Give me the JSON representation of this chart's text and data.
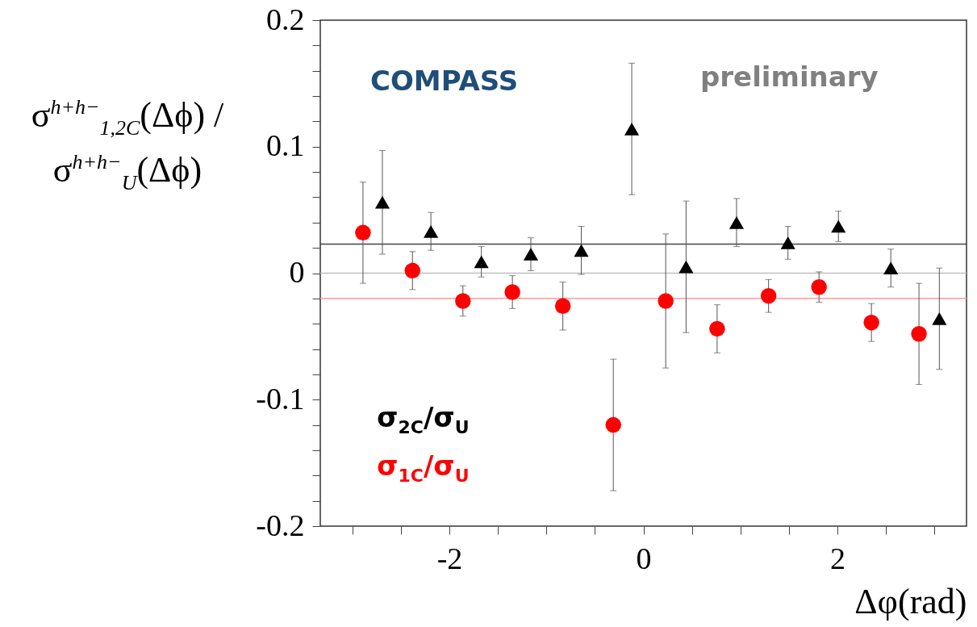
{
  "chart_data": {
    "type": "scatter",
    "ylabel": "σ$^{h+h−}$$_{1,2C}$(Δϕ) / σ$^{h+h−}$$_{U}$(Δϕ)",
    "xlabel": "Δφ(rad)",
    "annotations": [
      "COMPASS",
      "preliminary"
    ],
    "legend": "bottom left",
    "grid": false,
    "xlim": [
      -3.33,
      3.33
    ],
    "xticks": [
      {
        "value": -3,
        "label": null
      },
      {
        "value": -2.5,
        "label": null
      },
      -2,
      {
        "value": -1.5,
        "label": null
      },
      {
        "value": -1,
        "label": null
      },
      {
        "value": -0.5,
        "label": null
      },
      0,
      {
        "value": 0.5,
        "label": null
      },
      {
        "value": 1,
        "label": null
      },
      {
        "value": 1.5,
        "label": null
      },
      2,
      {
        "value": 2.5,
        "label": null
      },
      {
        "value": 3,
        "label": null
      }
    ],
    "ylim": [
      -0.2,
      0.2
    ],
    "yticks": [
      -0.2,
      {
        "value": -0.18,
        "label": null
      },
      {
        "value": -0.16,
        "label": null
      },
      {
        "value": -0.14,
        "label": null
      },
      {
        "value": -0.12,
        "label": null
      },
      -0.1,
      {
        "value": -0.08,
        "label": null
      },
      {
        "value": -0.06,
        "label": null
      },
      {
        "value": -0.04,
        "label": null
      },
      {
        "value": -0.02,
        "label": null
      },
      0,
      {
        "value": 0.02,
        "label": null
      },
      {
        "value": 0.04,
        "label": null
      },
      {
        "value": 0.06,
        "label": null
      },
      {
        "value": 0.08,
        "label": null
      },
      0.1,
      {
        "value": 0.12,
        "label": null
      },
      {
        "value": 0.14,
        "label": null
      },
      {
        "value": 0.16,
        "label": null
      },
      {
        "value": 0.18,
        "label": null
      },
      0.2
    ],
    "ref_lines": [
      {
        "axis": "y",
        "value": 0,
        "color": "#c0c0c0"
      },
      {
        "axis": "y",
        "value": 0.023,
        "color": "#444444"
      },
      {
        "axis": "y",
        "value": -0.02,
        "color": "#ff9a9a"
      }
    ],
    "series": [
      {
        "name": "σ$_{2C}$/σ$_{U}$",
        "color": "#000000",
        "marker": "triangle",
        "x": [
          -2.69,
          -2.19,
          -1.67,
          -1.16,
          -0.64,
          -0.12,
          0.44,
          0.96,
          1.49,
          2.01,
          2.55,
          3.05
        ],
        "values": [
          0.056,
          0.033,
          0.009,
          0.015,
          0.018,
          0.114,
          0.005,
          0.04,
          0.024,
          0.037,
          0.004,
          -0.036
        ],
        "errors": [
          0.041,
          0.015,
          0.012,
          0.013,
          0.019,
          0.052,
          0.052,
          0.019,
          0.013,
          0.012,
          0.015,
          0.04
        ]
      },
      {
        "name": "σ$_{1C}$/σ$_{U}$",
        "color": "#ff0000",
        "marker": "circle",
        "x": [
          -2.89,
          -2.38,
          -1.86,
          -1.35,
          -0.83,
          -0.31,
          0.23,
          0.76,
          1.29,
          1.81,
          2.35,
          2.84
        ],
        "values": [
          0.032,
          0.002,
          -0.022,
          -0.015,
          -0.026,
          -0.12,
          -0.022,
          -0.044,
          -0.018,
          -0.011,
          -0.039,
          -0.048
        ],
        "errors": [
          0.04,
          0.015,
          0.012,
          0.013,
          0.019,
          0.052,
          0.053,
          0.019,
          0.013,
          0.012,
          0.015,
          0.04
        ]
      }
    ]
  }
}
